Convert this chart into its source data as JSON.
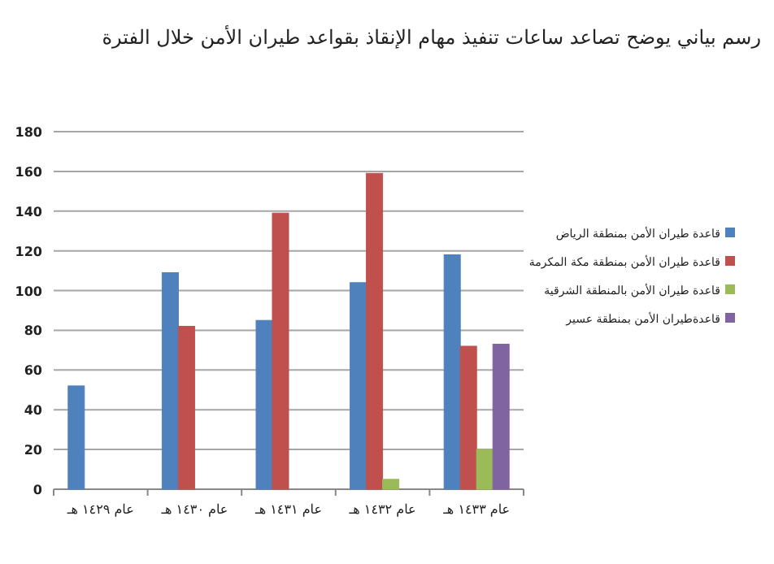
{
  "chart_data": {
    "type": "bar",
    "title": "رسم بياني يوضح تصاعد ساعات تنفيذ مهام الإنقاذ بقواعد طيران الأمن خلال الفترة",
    "categories": [
      "عام ١٤٢٩ هـ",
      "عام ١٤٣٠ هـ",
      "عام ١٤٣١ هـ",
      "عام ١٤٣٢ هـ",
      "عام ١٤٣٣ هـ"
    ],
    "series": [
      {
        "name": "قاعدة طيران الأمن بمنطقة الرياض",
        "color": "#4f81bd",
        "values": [
          52,
          109,
          85,
          104,
          118
        ]
      },
      {
        "name": "قاعدة طيران الأمن بمنطقة مكة المكرمة",
        "color": "#c0504d",
        "values": [
          null,
          82,
          139,
          159,
          72
        ]
      },
      {
        "name": "قاعدة طيران الأمن بالمنطقة الشرقية",
        "color": "#9bbb59",
        "values": [
          null,
          null,
          null,
          5,
          20
        ]
      },
      {
        "name": "قاعدةطيران الأمن بمنطقة عسير",
        "color": "#8064a2",
        "values": [
          null,
          null,
          null,
          null,
          73
        ]
      }
    ],
    "ylim": [
      0,
      180
    ],
    "yticks": [
      0,
      20,
      40,
      60,
      80,
      100,
      120,
      140,
      160,
      180
    ],
    "grid": "y",
    "legend": "right"
  }
}
